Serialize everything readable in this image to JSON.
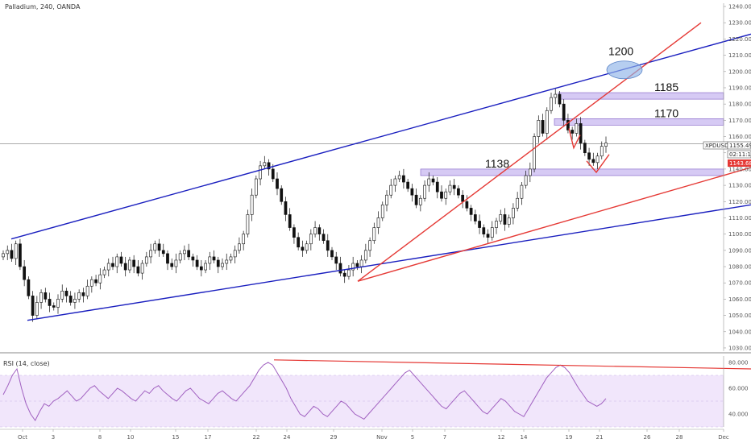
{
  "header": {
    "title": "Palladium, 240, OANDA"
  },
  "rsi_header": {
    "label": "RSI (14, close)"
  },
  "colors": {
    "up": "#ffffff",
    "down": "#111111",
    "red": "#e53935",
    "blue": "#1a1fbf",
    "zone": "#c8b8f0",
    "zone_edge": "#7d5cc4",
    "rsi": "#a060c0",
    "rsi_band": "#f1e6fb"
  },
  "price_badges": {
    "current": "1155.493",
    "timer": "02:11:14",
    "bid": "1143.685",
    "symbol": "XPDUSD"
  },
  "chart_data": [
    {
      "type": "candlestick",
      "x_ticks": [
        "Oct",
        "3",
        "8",
        "10",
        "15",
        "17",
        "22",
        "24",
        "29",
        "Nov",
        "5",
        "7",
        "12",
        "14",
        "19",
        "21",
        "26",
        "28",
        "Dec"
      ],
      "y_ticks": [
        "1030.000",
        "1040.000",
        "1050.000",
        "1060.000",
        "1070.000",
        "1080.000",
        "1090.000",
        "1100.000",
        "1110.000",
        "1120.000",
        "1130.000",
        "1140.000",
        "1150.000",
        "1160.000",
        "1170.000",
        "1180.000",
        "1190.000",
        "1200.000",
        "1210.000",
        "1220.000",
        "1230.000",
        "1240.000"
      ],
      "ylim": [
        1028,
        1242
      ],
      "close": [
        1088,
        1090,
        1085,
        1094,
        1080,
        1072,
        1062,
        1050,
        1058,
        1064,
        1060,
        1056,
        1055,
        1060,
        1065,
        1062,
        1058,
        1060,
        1064,
        1062,
        1068,
        1072,
        1070,
        1075,
        1078,
        1082,
        1080,
        1086,
        1082,
        1078,
        1084,
        1080,
        1076,
        1082,
        1086,
        1090,
        1094,
        1090,
        1088,
        1082,
        1080,
        1084,
        1088,
        1090,
        1086,
        1084,
        1080,
        1078,
        1082,
        1086,
        1084,
        1080,
        1082,
        1084,
        1086,
        1090,
        1094,
        1100,
        1112,
        1124,
        1134,
        1142,
        1144,
        1140,
        1134,
        1128,
        1120,
        1112,
        1104,
        1098,
        1092,
        1090,
        1094,
        1100,
        1104,
        1100,
        1096,
        1090,
        1086,
        1082,
        1076,
        1074,
        1078,
        1082,
        1080,
        1084,
        1090,
        1096,
        1104,
        1110,
        1118,
        1124,
        1130,
        1134,
        1136,
        1132,
        1128,
        1124,
        1118,
        1122,
        1130,
        1134,
        1132,
        1126,
        1122,
        1126,
        1130,
        1128,
        1124,
        1120,
        1116,
        1112,
        1108,
        1104,
        1100,
        1098,
        1104,
        1108,
        1112,
        1106,
        1110,
        1116,
        1122,
        1130,
        1136,
        1140,
        1160,
        1170,
        1162,
        1176,
        1184,
        1186,
        1180,
        1170,
        1164,
        1162,
        1168,
        1156,
        1150,
        1146,
        1144,
        1148,
        1154,
        1156
      ],
      "events": [
        {
          "label": "1138"
        },
        {
          "label": "1170"
        },
        {
          "label": "1185"
        },
        {
          "label": "1200"
        }
      ],
      "zones": [
        {
          "label": "1138",
          "low": 1136,
          "high": 1140
        },
        {
          "label": "1170",
          "low": 1167,
          "high": 1171
        },
        {
          "label": "1185",
          "low": 1183,
          "high": 1187
        }
      ],
      "current_price": 1155.493
    },
    {
      "type": "line",
      "series": [
        {
          "name": "RSI (14, close)",
          "values": [
            55,
            62,
            70,
            75,
            60,
            48,
            40,
            35,
            42,
            48,
            46,
            50,
            52,
            55,
            58,
            54,
            50,
            52,
            56,
            60,
            62,
            58,
            55,
            52,
            56,
            60,
            58,
            55,
            52,
            50,
            54,
            58,
            56,
            60,
            62,
            58,
            55,
            52,
            50,
            54,
            58,
            60,
            56,
            52,
            50,
            48,
            52,
            56,
            58,
            55,
            52,
            50,
            54,
            58,
            62,
            68,
            74,
            78,
            80,
            78,
            72,
            66,
            60,
            52,
            46,
            40,
            38,
            42,
            46,
            44,
            40,
            38,
            42,
            46,
            50,
            48,
            44,
            40,
            38,
            36,
            40,
            44,
            48,
            52,
            56,
            60,
            64,
            68,
            72,
            74,
            70,
            66,
            62,
            58,
            54,
            50,
            46,
            44,
            48,
            52,
            56,
            58,
            54,
            50,
            46,
            42,
            40,
            44,
            48,
            52,
            50,
            46,
            42,
            40,
            38,
            44,
            50,
            56,
            62,
            68,
            72,
            76,
            78,
            76,
            72,
            66,
            60,
            55,
            50,
            48,
            46,
            48,
            52
          ]
        }
      ],
      "y_ticks": [
        "40.000",
        "60.000",
        "80.000"
      ],
      "ylim": [
        30,
        85
      ],
      "band": [
        30,
        70
      ]
    }
  ]
}
